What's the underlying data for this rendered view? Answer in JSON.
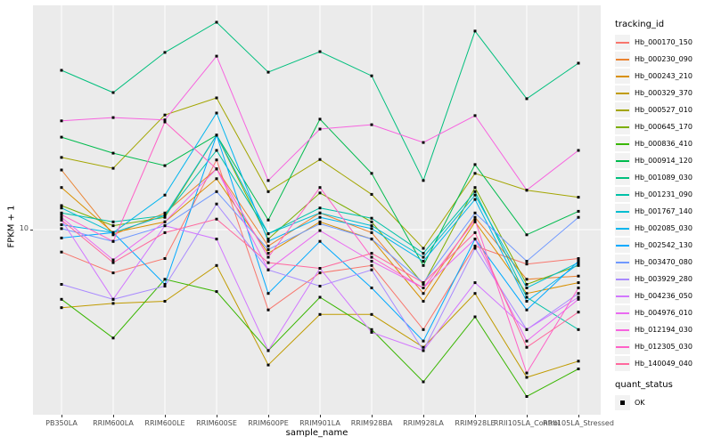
{
  "figure": {
    "x_axis": {
      "title": "sample_name"
    },
    "y_axis": {
      "title": "FPKM + 1",
      "tick_label": "10"
    },
    "legend": {
      "tracking_title": "tracking_id",
      "quant_title": "quant_status",
      "quant_items": [
        {
          "label": "OK"
        }
      ]
    },
    "colors": {
      "panel_bg": "#EBEBEB",
      "grid": "#FFFFFF",
      "axis_text": "#4D4D4D",
      "point": "#000000",
      "legend_key_bg": "#F2F2F2"
    }
  },
  "chart_data": {
    "type": "line",
    "title": "",
    "xlabel": "sample_name",
    "ylabel": "FPKM + 1",
    "y_scale": "log10",
    "y_ticks": [
      10
    ],
    "ylim": [
      1.6,
      95
    ],
    "grid": true,
    "legend_position": "right",
    "point_shape": "black-square",
    "categories": [
      "PB350LA",
      "RRIM600LA",
      "RRIM600LE",
      "RRIM600SE",
      "RRIM600PE",
      "RRIM901LA",
      "RRIM928BA",
      "RRIM928LA",
      "RRIM928LE",
      "RRII105LA_Control",
      "RRII105LA_Stressed"
    ],
    "series": [
      {
        "name": "Hb_000170_150",
        "color": "#F8766D",
        "values": [
          8.0,
          6.5,
          7.5,
          20.0,
          4.5,
          6.5,
          7.0,
          3.7,
          8.5,
          7.1,
          7.5
        ]
      },
      {
        "name": "Hb_000230_090",
        "color": "#EA8331",
        "values": [
          18.1,
          9.5,
          11.8,
          18.3,
          8.5,
          11.8,
          9.7,
          5.3,
          11.3,
          6.1,
          6.3
        ]
      },
      {
        "name": "Hb_000243_210",
        "color": "#D89000",
        "values": [
          15.2,
          9.7,
          10.8,
          16.6,
          7.9,
          10.8,
          9.1,
          4.9,
          10.8,
          5.3,
          5.9
        ]
      },
      {
        "name": "Hb_000329_370",
        "color": "#C09B00",
        "values": [
          4.6,
          4.8,
          4.9,
          7.0,
          2.6,
          4.3,
          4.3,
          3.1,
          5.3,
          2.3,
          2.7
        ]
      },
      {
        "name": "Hb_000527_010",
        "color": "#A3A500",
        "values": [
          20.5,
          18.4,
          31.3,
          37.1,
          14.6,
          20.1,
          14.2,
          8.3,
          17.5,
          14.8,
          13.8
        ]
      },
      {
        "name": "Hb_000645_170",
        "color": "#7CAE00",
        "values": [
          12.7,
          10.4,
          11.3,
          25.6,
          9.1,
          14.4,
          10.8,
          5.8,
          15.2,
          5.8,
          7.0
        ]
      },
      {
        "name": "Hb_000836_410",
        "color": "#39B600",
        "values": [
          5.0,
          3.4,
          6.1,
          5.4,
          3.0,
          5.1,
          3.7,
          2.2,
          4.2,
          1.9,
          2.5
        ]
      },
      {
        "name": "Hb_000914_120",
        "color": "#00BB4E",
        "values": [
          25.1,
          21.4,
          18.9,
          25.6,
          11.0,
          30.0,
          17.5,
          7.0,
          19.1,
          9.5,
          12.0
        ]
      },
      {
        "name": "Hb_001089_030",
        "color": "#00BF7D",
        "values": [
          48.8,
          39.1,
          58.3,
          78.7,
          47.9,
          58.8,
          46.2,
          16.3,
          72.1,
          36.8,
          52.4
        ]
      },
      {
        "name": "Hb_001231_090",
        "color": "#00C1A7",
        "values": [
          11.8,
          10.8,
          11.5,
          22.0,
          9.6,
          12.4,
          11.2,
          7.9,
          14.6,
          5.1,
          3.7
        ]
      },
      {
        "name": "Hb_001767_140",
        "color": "#00BDD0",
        "values": [
          12.4,
          9.7,
          11.5,
          25.6,
          9.6,
          11.8,
          10.4,
          7.6,
          14.1,
          5.6,
          7.2
        ]
      },
      {
        "name": "Hb_002085_030",
        "color": "#00B5EE",
        "values": [
          10.5,
          9.7,
          14.1,
          31.9,
          8.9,
          11.3,
          10.1,
          7.3,
          13.5,
          4.9,
          7.1
        ]
      },
      {
        "name": "Hb_002542_130",
        "color": "#00A9FF",
        "values": [
          9.2,
          9.7,
          5.8,
          25.6,
          5.3,
          8.9,
          5.6,
          3.3,
          9.1,
          4.5,
          7.3
        ]
      },
      {
        "name": "Hb_003470_080",
        "color": "#7099FF",
        "values": [
          10.1,
          8.9,
          10.4,
          14.6,
          8.2,
          10.6,
          9.1,
          5.9,
          11.8,
          7.3,
          11.3
        ]
      },
      {
        "name": "Hb_003929_280",
        "color": "#A98AFF",
        "values": [
          5.8,
          5.0,
          5.7,
          12.9,
          6.7,
          5.7,
          6.7,
          3.0,
          8.3,
          3.7,
          5.3
        ]
      },
      {
        "name": "Hb_004236_050",
        "color": "#D277FF",
        "values": [
          11.0,
          5.0,
          10.4,
          9.1,
          3.0,
          6.8,
          3.6,
          3.0,
          5.9,
          3.7,
          5.1
        ]
      },
      {
        "name": "Hb_004976_010",
        "color": "#EA6AF1",
        "values": [
          11.3,
          7.4,
          10.8,
          18.3,
          6.7,
          9.9,
          7.3,
          5.6,
          9.1,
          3.3,
          5.0
        ]
      },
      {
        "name": "Hb_012194_030",
        "color": "#F763DF",
        "values": [
          29.5,
          30.5,
          29.8,
          56.2,
          16.3,
          27.2,
          28.4,
          23.8,
          31.1,
          14.8,
          22.0
        ]
      },
      {
        "name": "Hb_012305_030",
        "color": "#FF61C7",
        "values": [
          11.6,
          8.9,
          29.2,
          18.3,
          7.6,
          15.2,
          7.6,
          5.6,
          11.0,
          2.4,
          5.6
        ]
      },
      {
        "name": "Hb_140049_040",
        "color": "#FF689E",
        "values": [
          11.0,
          7.2,
          9.7,
          11.1,
          7.2,
          6.8,
          7.9,
          5.9,
          9.7,
          3.1,
          4.4
        ]
      }
    ]
  }
}
